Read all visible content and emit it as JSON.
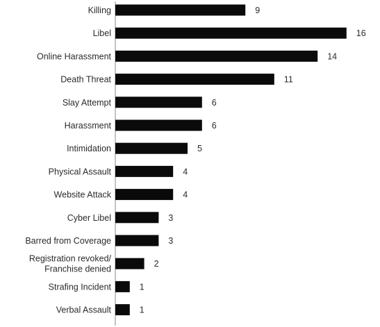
{
  "chart_data": {
    "type": "bar",
    "orientation": "horizontal",
    "categories": [
      "Killing",
      "Libel",
      "Online Harassment",
      "Death Threat",
      "Slay Attempt",
      "Harassment",
      "Intimidation",
      "Physical Assault",
      "Website Attack",
      "Cyber Libel",
      "Barred from Coverage",
      "Registration revoked/ Franchise denied",
      "Strafing Incident",
      "Verbal Assault"
    ],
    "values": [
      9,
      16,
      14,
      11,
      6,
      6,
      5,
      4,
      4,
      3,
      3,
      2,
      1,
      1
    ],
    "title": "",
    "xlabel": "",
    "ylabel": "",
    "xlim": [
      0,
      16
    ],
    "grid": false,
    "legend": "none",
    "bar_color": "#0a0a0a"
  }
}
